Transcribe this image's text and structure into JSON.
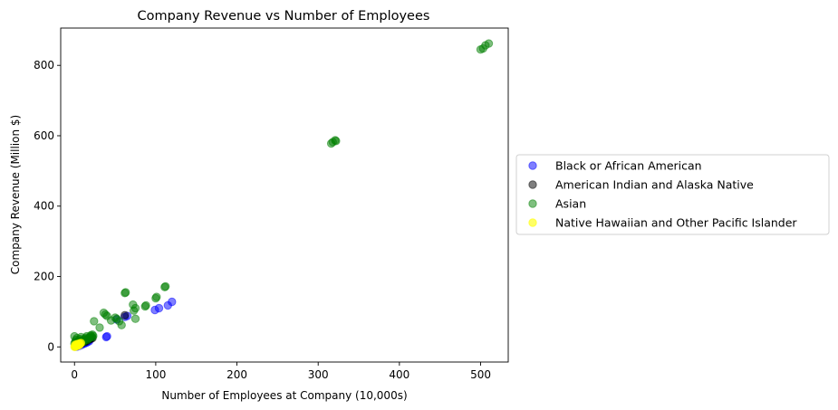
{
  "chart_data": {
    "type": "scatter",
    "title": "Company Revenue vs Number of Employees",
    "xlabel": "Number of Employees at Company (10,000s)",
    "ylabel": "Company Revenue (Million $)",
    "xlim": [
      -17,
      534
    ],
    "ylim": [
      -43,
      906
    ],
    "xticks": [
      0,
      100,
      200,
      300,
      400,
      500
    ],
    "yticks": [
      0,
      200,
      400,
      600,
      800
    ],
    "grid": false,
    "legend_placement": "outside-right",
    "series": [
      {
        "name": "Black or African American",
        "color": "#0000ff",
        "alpha": 0.5,
        "points": [
          [
            1,
            1
          ],
          [
            2,
            2
          ],
          [
            3,
            3
          ],
          [
            4,
            4
          ],
          [
            5,
            5
          ],
          [
            6,
            6
          ],
          [
            7,
            7
          ],
          [
            8,
            8
          ],
          [
            9,
            9
          ],
          [
            10,
            10
          ],
          [
            11,
            11
          ],
          [
            12,
            12
          ],
          [
            13,
            13
          ],
          [
            14,
            14
          ],
          [
            15,
            15
          ],
          [
            16,
            17
          ],
          [
            17,
            18
          ],
          [
            18,
            20
          ],
          [
            19,
            22
          ],
          [
            20,
            24
          ],
          [
            3,
            1
          ],
          [
            6,
            3
          ],
          [
            9,
            6
          ],
          [
            12,
            9
          ],
          [
            15,
            12
          ],
          [
            18,
            16
          ],
          [
            39,
            28
          ],
          [
            40,
            30
          ],
          [
            52,
            78
          ],
          [
            62,
            85
          ],
          [
            65,
            88
          ],
          [
            99,
            105
          ],
          [
            104,
            110
          ],
          [
            115,
            118
          ],
          [
            120,
            128
          ]
        ]
      },
      {
        "name": "American Indian and Alaska Native",
        "color": "#000000",
        "alpha": 0.5,
        "points": [
          [
            2,
            2
          ],
          [
            4,
            4
          ],
          [
            6,
            7
          ],
          [
            8,
            9
          ],
          [
            10,
            12
          ],
          [
            12,
            14
          ],
          [
            14,
            16
          ],
          [
            16,
            19
          ],
          [
            18,
            21
          ],
          [
            20,
            23
          ],
          [
            22,
            25
          ],
          [
            62,
            90
          ]
        ]
      },
      {
        "name": "Asian",
        "color": "#008000",
        "alpha": 0.5,
        "points": [
          [
            0,
            10
          ],
          [
            0,
            30
          ],
          [
            1,
            15
          ],
          [
            2,
            20
          ],
          [
            3,
            25
          ],
          [
            5,
            18
          ],
          [
            7,
            22
          ],
          [
            8,
            28
          ],
          [
            10,
            18
          ],
          [
            12,
            23
          ],
          [
            14,
            26
          ],
          [
            15,
            30
          ],
          [
            16,
            20
          ],
          [
            18,
            25
          ],
          [
            20,
            30
          ],
          [
            20,
            33
          ],
          [
            22,
            28
          ],
          [
            22,
            35
          ],
          [
            23,
            31
          ],
          [
            6,
            12
          ],
          [
            9,
            15
          ],
          [
            11,
            14
          ],
          [
            13,
            20
          ],
          [
            17,
            24
          ],
          [
            19,
            27
          ],
          [
            24,
            73
          ],
          [
            31,
            55
          ],
          [
            36,
            97
          ],
          [
            38,
            92
          ],
          [
            40,
            88
          ],
          [
            45,
            75
          ],
          [
            50,
            83
          ],
          [
            52,
            80
          ],
          [
            55,
            73
          ],
          [
            58,
            62
          ],
          [
            62,
            153
          ],
          [
            63,
            155
          ],
          [
            72,
            120
          ],
          [
            73,
            103
          ],
          [
            75,
            80
          ],
          [
            75,
            110
          ],
          [
            87,
            115
          ],
          [
            88,
            118
          ],
          [
            100,
            138
          ],
          [
            101,
            142
          ],
          [
            111,
            170
          ],
          [
            112,
            172
          ],
          [
            316,
            578
          ],
          [
            318,
            582
          ],
          [
            321,
            587
          ],
          [
            322,
            585
          ],
          [
            500,
            845
          ],
          [
            503,
            848
          ],
          [
            506,
            857
          ],
          [
            510,
            862
          ]
        ]
      },
      {
        "name": "Native Hawaiian and Other Pacific Islander",
        "color": "#ffff00",
        "alpha": 0.6,
        "points": [
          [
            0,
            0
          ],
          [
            1,
            1
          ],
          [
            1,
            3
          ],
          [
            2,
            2
          ],
          [
            2,
            5
          ],
          [
            3,
            4
          ],
          [
            4,
            7
          ],
          [
            4,
            3
          ],
          [
            5,
            6
          ],
          [
            5,
            8
          ],
          [
            6,
            10
          ],
          [
            6,
            5
          ],
          [
            7,
            9
          ],
          [
            8,
            11
          ],
          [
            3,
            8
          ],
          [
            1,
            6
          ]
        ]
      }
    ]
  }
}
